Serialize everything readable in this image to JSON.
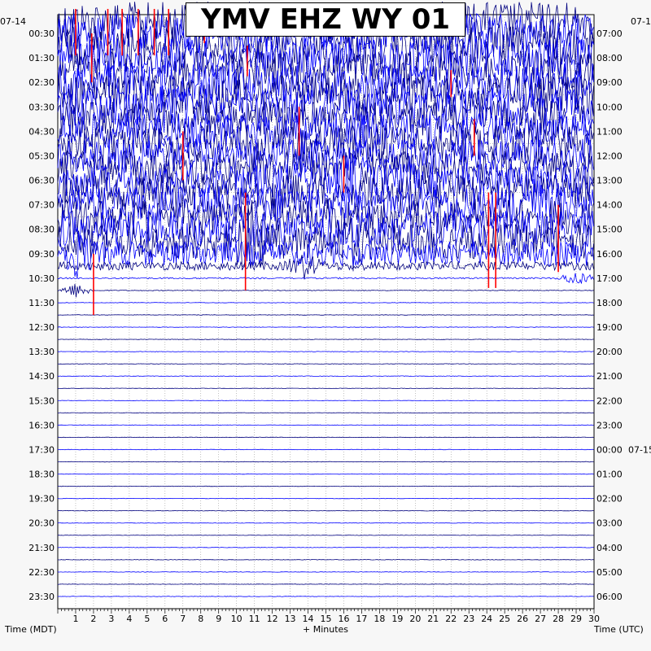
{
  "chart_data": {
    "type": "line",
    "title": "YMV EHZ WY 01",
    "xlabel": "+ Minutes",
    "left_axis_label": "Time (MDT)",
    "right_axis_label": "Time (UTC)",
    "left_date_label": "07-14",
    "right_date_label": "07-1",
    "right_midnight_date": "07-15",
    "x_range": [
      0,
      30
    ],
    "x_ticks": [
      "1",
      "2",
      "3",
      "4",
      "5",
      "6",
      "7",
      "8",
      "9",
      "10",
      "11",
      "12",
      "13",
      "14",
      "15",
      "16",
      "17",
      "18",
      "19",
      "20",
      "21",
      "22",
      "23",
      "24",
      "25",
      "26",
      "27",
      "28",
      "29",
      "30"
    ],
    "left_ticks": [
      "00:30",
      "01:30",
      "02:30",
      "03:30",
      "04:30",
      "05:30",
      "06:30",
      "07:30",
      "08:30",
      "09:30",
      "10:30",
      "11:30",
      "12:30",
      "13:30",
      "14:30",
      "15:30",
      "16:30",
      "17:30",
      "18:30",
      "19:30",
      "20:30",
      "21:30",
      "22:30",
      "23:30"
    ],
    "right_ticks": [
      "07:00",
      "08:00",
      "09:00",
      "10:00",
      "11:00",
      "12:00",
      "13:00",
      "14:00",
      "15:00",
      "16:00",
      "17:00",
      "18:00",
      "19:00",
      "20:00",
      "21:00",
      "22:00",
      "23:00",
      "00:00",
      "01:00",
      "02:00",
      "03:00",
      "04:00",
      "05:00",
      "06:00"
    ],
    "trace_rows": 48,
    "grid": true,
    "series_colors": [
      "#000080",
      "#0000ff"
    ],
    "clip_color": "#ff0000",
    "row_amplitude": [
      1.6,
      1.6,
      1.6,
      1.6,
      1.6,
      1.6,
      1.6,
      1.6,
      1.5,
      1.5,
      1.5,
      1.4,
      1.4,
      1.4,
      1.5,
      1.5,
      1.5,
      1.5,
      1.4,
      1.0,
      0.35,
      0.06,
      0.03,
      0.02,
      0.02,
      0.02,
      0.02,
      0.02,
      0.02,
      0.02,
      0.02,
      0.02,
      0.02,
      0.02,
      0.02,
      0.02,
      0.02,
      0.02,
      0.02,
      0.02,
      0.02,
      0.02,
      0.02,
      0.02,
      0.02,
      0.02,
      0.02,
      0.02
    ],
    "events": [
      {
        "row": 19,
        "minute": 1.0,
        "size": 1.2
      },
      {
        "row": 18,
        "minute": 10.8,
        "size": 2.2
      },
      {
        "row": 18,
        "minute": 16.4,
        "size": 1.2
      },
      {
        "row": 20,
        "minute": 13.8,
        "size": 0.8
      },
      {
        "row": 21,
        "minute": 29.0,
        "size": 0.6
      },
      {
        "row": 22,
        "minute": 1.0,
        "size": 0.6
      },
      {
        "row": 7,
        "minute": 6.0,
        "size": 0.8
      },
      {
        "row": 13,
        "minute": 16.6,
        "size": 1.0
      },
      {
        "row": 15,
        "minute": 26.5,
        "size": 1.0
      }
    ],
    "clipped_spikes": [
      {
        "row": 0,
        "minute": 1.0,
        "len": 2.8
      },
      {
        "row": 0,
        "minute": 2.8,
        "len": 2.8
      },
      {
        "row": 0,
        "minute": 3.6,
        "len": 2.8
      },
      {
        "row": 0,
        "minute": 4.5,
        "len": 2.8
      },
      {
        "row": 0,
        "minute": 5.4,
        "len": 2.8
      },
      {
        "row": 0,
        "minute": 6.2,
        "len": 2.8
      },
      {
        "row": 0,
        "minute": 8.2,
        "len": 1.8
      },
      {
        "row": 0,
        "minute": 13.3,
        "len": 1.2
      },
      {
        "row": 2,
        "minute": 1.9,
        "len": 3.0
      },
      {
        "row": 3,
        "minute": 10.6,
        "len": 1.5
      },
      {
        "row": 5,
        "minute": 22.0,
        "len": 1.2
      },
      {
        "row": 8,
        "minute": 13.5,
        "len": 3.0
      },
      {
        "row": 9,
        "minute": 23.3,
        "len": 2.0
      },
      {
        "row": 10,
        "minute": 7.0,
        "len": 3.0
      },
      {
        "row": 12,
        "minute": 16.0,
        "len": 2.0
      },
      {
        "row": 15,
        "minute": 10.5,
        "len": 7.0
      },
      {
        "row": 15,
        "minute": 24.1,
        "len": 6.8
      },
      {
        "row": 15,
        "minute": 24.5,
        "len": 6.8
      },
      {
        "row": 16,
        "minute": 28.0,
        "len": 4.5
      },
      {
        "row": 20,
        "minute": 2.0,
        "len": 4.0
      }
    ]
  }
}
